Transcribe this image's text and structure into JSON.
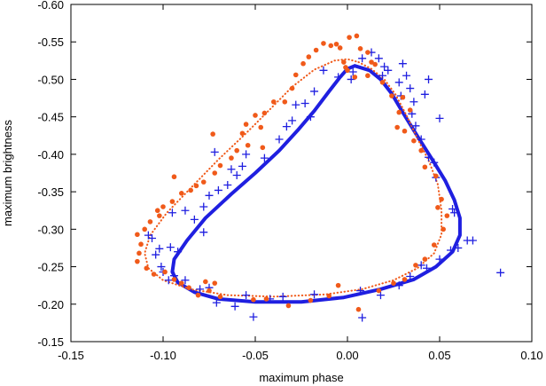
{
  "chart_data": {
    "type": "scatter",
    "xlabel": "maximum phase",
    "ylabel": "maximum brightness",
    "xlim": [
      -0.15,
      0.1
    ],
    "ylim": [
      -0.6,
      -0.15
    ],
    "y_axis_inverted": true,
    "grid": false,
    "legend": "none",
    "xticks": [
      "-0.15",
      "-0.10",
      "-0.05",
      "0.00",
      "0.05",
      "0.10"
    ],
    "yticks": [
      "-0.60",
      "-0.55",
      "-0.50",
      "-0.45",
      "-0.40",
      "-0.35",
      "-0.30",
      "-0.25",
      "-0.20",
      "-0.15"
    ],
    "series": [
      {
        "marker": "plus",
        "color": "#1f1fe0",
        "points": [
          [
            0.013,
            -0.536
          ],
          [
            0.017,
            -0.528
          ],
          [
            0.02,
            -0.517
          ],
          [
            0.03,
            -0.521
          ],
          [
            0.032,
            -0.505
          ],
          [
            0.034,
            -0.488
          ],
          [
            0.029,
            -0.478
          ],
          [
            0.008,
            -0.528
          ],
          [
            0.003,
            -0.51
          ],
          [
            0.002,
            -0.5
          ],
          [
            -0.005,
            -0.503
          ],
          [
            -0.013,
            -0.512
          ],
          [
            -0.018,
            -0.484
          ],
          [
            -0.02,
            -0.45
          ],
          [
            -0.023,
            -0.468
          ],
          [
            -0.028,
            -0.466
          ],
          [
            -0.03,
            -0.445
          ],
          [
            -0.033,
            -0.437
          ],
          [
            -0.037,
            -0.42
          ],
          [
            -0.045,
            -0.395
          ],
          [
            -0.055,
            -0.4
          ],
          [
            -0.057,
            -0.384
          ],
          [
            -0.06,
            -0.372
          ],
          [
            -0.065,
            -0.359
          ],
          [
            -0.07,
            -0.352
          ],
          [
            -0.075,
            -0.345
          ],
          [
            -0.072,
            -0.403
          ],
          [
            -0.063,
            -0.38
          ],
          [
            -0.078,
            -0.33
          ],
          [
            -0.083,
            -0.313
          ],
          [
            -0.088,
            -0.325
          ],
          [
            -0.095,
            -0.322
          ],
          [
            -0.078,
            -0.296
          ],
          [
            -0.092,
            -0.27
          ],
          [
            -0.096,
            -0.276
          ],
          [
            -0.102,
            -0.274
          ],
          [
            -0.104,
            -0.266
          ],
          [
            -0.106,
            -0.288
          ],
          [
            -0.108,
            -0.292
          ],
          [
            -0.101,
            -0.25
          ],
          [
            -0.1,
            -0.243
          ],
          [
            -0.097,
            -0.232
          ],
          [
            -0.094,
            -0.238
          ],
          [
            -0.088,
            -0.232
          ],
          [
            -0.08,
            -0.22
          ],
          [
            -0.075,
            -0.222
          ],
          [
            -0.071,
            -0.202
          ],
          [
            -0.061,
            -0.197
          ],
          [
            -0.055,
            -0.212
          ],
          [
            -0.051,
            -0.183
          ],
          [
            -0.042,
            -0.207
          ],
          [
            -0.035,
            -0.21
          ],
          [
            -0.018,
            -0.213
          ],
          [
            0.007,
            -0.218
          ],
          [
            0.008,
            -0.182
          ],
          [
            0.018,
            -0.212
          ],
          [
            0.028,
            -0.225
          ],
          [
            0.034,
            -0.237
          ],
          [
            0.04,
            -0.252
          ],
          [
            0.043,
            -0.248
          ],
          [
            0.05,
            -0.26
          ],
          [
            0.056,
            -0.272
          ],
          [
            0.06,
            -0.275
          ],
          [
            0.065,
            -0.285
          ],
          [
            0.068,
            -0.285
          ],
          [
            0.083,
            -0.242
          ],
          [
            0.058,
            -0.322
          ],
          [
            0.047,
            -0.389
          ],
          [
            0.044,
            -0.396
          ],
          [
            0.048,
            -0.369
          ],
          [
            0.04,
            -0.42
          ],
          [
            0.037,
            -0.438
          ],
          [
            0.036,
            -0.47
          ],
          [
            0.042,
            -0.48
          ],
          [
            0.044,
            -0.5
          ],
          [
            0.028,
            -0.496
          ],
          [
            0.022,
            -0.512
          ],
          [
            0.019,
            -0.505
          ],
          [
            0.035,
            -0.454
          ],
          [
            0.05,
            -0.448
          ],
          [
            0.057,
            -0.327
          ]
        ]
      },
      {
        "marker": "dot",
        "color": "#f05a1a",
        "points": [
          [
            -0.013,
            -0.548
          ],
          [
            -0.009,
            -0.545
          ],
          [
            -0.006,
            -0.547
          ],
          [
            -0.004,
            -0.542
          ],
          [
            0.001,
            -0.556
          ],
          [
            0.005,
            -0.558
          ],
          [
            0.007,
            -0.541
          ],
          [
            0.011,
            -0.536
          ],
          [
            0.013,
            -0.523
          ],
          [
            -0.002,
            -0.523
          ],
          [
            -0.001,
            -0.516
          ],
          [
            0.0,
            -0.512
          ],
          [
            0.004,
            -0.503
          ],
          [
            0.011,
            -0.505
          ],
          [
            -0.017,
            -0.539
          ],
          [
            -0.021,
            -0.53
          ],
          [
            -0.024,
            -0.521
          ],
          [
            -0.028,
            -0.506
          ],
          [
            -0.03,
            -0.488
          ],
          [
            -0.034,
            -0.47
          ],
          [
            -0.04,
            -0.47
          ],
          [
            -0.045,
            -0.455
          ],
          [
            -0.047,
            -0.436
          ],
          [
            -0.05,
            -0.452
          ],
          [
            -0.055,
            -0.44
          ],
          [
            -0.057,
            -0.428
          ],
          [
            -0.046,
            -0.409
          ],
          [
            -0.054,
            -0.412
          ],
          [
            -0.06,
            -0.405
          ],
          [
            -0.063,
            -0.395
          ],
          [
            -0.069,
            -0.385
          ],
          [
            -0.072,
            -0.375
          ],
          [
            -0.073,
            -0.427
          ],
          [
            -0.078,
            -0.363
          ],
          [
            -0.082,
            -0.358
          ],
          [
            -0.085,
            -0.352
          ],
          [
            -0.09,
            -0.348
          ],
          [
            -0.095,
            -0.337
          ],
          [
            -0.094,
            -0.37
          ],
          [
            -0.1,
            -0.33
          ],
          [
            -0.103,
            -0.325
          ],
          [
            -0.102,
            -0.318
          ],
          [
            -0.107,
            -0.31
          ],
          [
            -0.11,
            -0.3
          ],
          [
            -0.114,
            -0.293
          ],
          [
            -0.112,
            -0.28
          ],
          [
            -0.113,
            -0.268
          ],
          [
            -0.114,
            -0.257
          ],
          [
            -0.109,
            -0.248
          ],
          [
            -0.105,
            -0.24
          ],
          [
            -0.099,
            -0.243
          ],
          [
            -0.094,
            -0.233
          ],
          [
            -0.09,
            -0.228
          ],
          [
            -0.086,
            -0.222
          ],
          [
            -0.081,
            -0.212
          ],
          [
            -0.075,
            -0.218
          ],
          [
            -0.077,
            -0.23
          ],
          [
            -0.072,
            -0.228
          ],
          [
            -0.069,
            -0.21
          ],
          [
            -0.051,
            -0.206
          ],
          [
            -0.044,
            -0.207
          ],
          [
            -0.032,
            -0.198
          ],
          [
            -0.02,
            -0.205
          ],
          [
            -0.01,
            -0.211
          ],
          [
            -0.005,
            -0.225
          ],
          [
            0.006,
            -0.193
          ],
          [
            0.017,
            -0.218
          ],
          [
            0.025,
            -0.228
          ],
          [
            0.031,
            -0.233
          ],
          [
            0.037,
            -0.252
          ],
          [
            0.042,
            -0.26
          ],
          [
            0.047,
            -0.279
          ],
          [
            0.052,
            -0.3
          ],
          [
            0.054,
            -0.318
          ],
          [
            0.051,
            -0.34
          ],
          [
            0.048,
            -0.371
          ],
          [
            0.042,
            -0.383
          ],
          [
            0.04,
            -0.405
          ],
          [
            0.036,
            -0.418
          ],
          [
            0.031,
            -0.431
          ],
          [
            0.028,
            -0.456
          ],
          [
            0.024,
            -0.478
          ],
          [
            0.019,
            -0.496
          ],
          [
            0.015,
            -0.52
          ],
          [
            0.03,
            -0.476
          ],
          [
            0.034,
            -0.459
          ],
          [
            0.027,
            -0.436
          ],
          [
            0.049,
            -0.329
          ]
        ]
      },
      {
        "type": "line",
        "style": "solid",
        "color": "#1f1fe0",
        "points": [
          [
            0.004,
            -0.518
          ],
          [
            0.012,
            -0.512
          ],
          [
            0.018,
            -0.5
          ],
          [
            0.024,
            -0.481
          ],
          [
            0.03,
            -0.456
          ],
          [
            0.038,
            -0.424
          ],
          [
            0.046,
            -0.393
          ],
          [
            0.053,
            -0.365
          ],
          [
            0.058,
            -0.339
          ],
          [
            0.061,
            -0.315
          ],
          [
            0.061,
            -0.292
          ],
          [
            0.057,
            -0.27
          ],
          [
            0.048,
            -0.25
          ],
          [
            0.036,
            -0.233
          ],
          [
            0.018,
            -0.22
          ],
          [
            -0.002,
            -0.209
          ],
          [
            -0.025,
            -0.203
          ],
          [
            -0.05,
            -0.203
          ],
          [
            -0.07,
            -0.207
          ],
          [
            -0.083,
            -0.216
          ],
          [
            -0.092,
            -0.229
          ],
          [
            -0.095,
            -0.243
          ],
          [
            -0.094,
            -0.26
          ],
          [
            -0.087,
            -0.285
          ],
          [
            -0.077,
            -0.315
          ],
          [
            -0.063,
            -0.347
          ],
          [
            -0.05,
            -0.375
          ],
          [
            -0.037,
            -0.405
          ],
          [
            -0.027,
            -0.432
          ],
          [
            -0.018,
            -0.458
          ],
          [
            -0.01,
            -0.484
          ],
          [
            -0.004,
            -0.503
          ],
          [
            0.0,
            -0.514
          ],
          [
            0.004,
            -0.518
          ]
        ]
      },
      {
        "type": "line",
        "style": "dotted",
        "color": "#f05a1a",
        "points": [
          [
            0.006,
            -0.523
          ],
          [
            0.013,
            -0.514
          ],
          [
            0.02,
            -0.5
          ],
          [
            0.026,
            -0.48
          ],
          [
            0.032,
            -0.452
          ],
          [
            0.038,
            -0.421
          ],
          [
            0.044,
            -0.392
          ],
          [
            0.049,
            -0.36
          ],
          [
            0.051,
            -0.325
          ],
          [
            0.051,
            -0.293
          ],
          [
            0.047,
            -0.268
          ],
          [
            0.038,
            -0.248
          ],
          [
            0.025,
            -0.232
          ],
          [
            0.008,
            -0.22
          ],
          [
            -0.012,
            -0.213
          ],
          [
            -0.04,
            -0.21
          ],
          [
            -0.065,
            -0.212
          ],
          [
            -0.085,
            -0.22
          ],
          [
            -0.1,
            -0.232
          ],
          [
            -0.108,
            -0.248
          ],
          [
            -0.11,
            -0.268
          ],
          [
            -0.107,
            -0.292
          ],
          [
            -0.098,
            -0.322
          ],
          [
            -0.085,
            -0.355
          ],
          [
            -0.07,
            -0.393
          ],
          [
            -0.055,
            -0.428
          ],
          [
            -0.042,
            -0.46
          ],
          [
            -0.03,
            -0.49
          ],
          [
            -0.018,
            -0.513
          ],
          [
            -0.007,
            -0.525
          ],
          [
            0.0,
            -0.527
          ],
          [
            0.006,
            -0.523
          ]
        ]
      }
    ]
  }
}
